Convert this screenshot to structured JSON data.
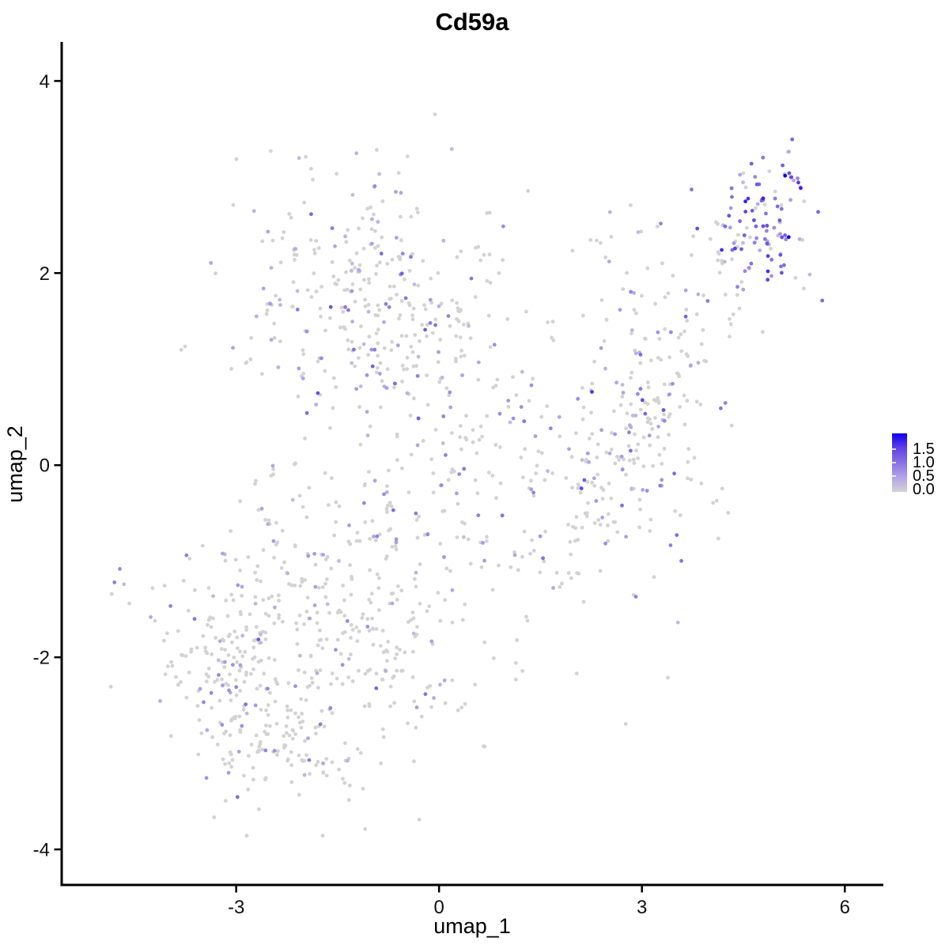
{
  "chart_data": {
    "type": "scatter",
    "title": "Cd59a",
    "xlabel": "umap_1",
    "ylabel": "umap_2",
    "x_ticks": [
      -3,
      0,
      3,
      6
    ],
    "x_tick_labels": [
      "-3",
      "0",
      "3",
      "6"
    ],
    "y_ticks": [
      -4,
      -2,
      0,
      2,
      4
    ],
    "y_tick_labels": [
      "-4",
      "-2",
      "0",
      "2",
      "4"
    ],
    "xlim": [
      -5.58,
      6.57
    ],
    "ylim": [
      -4.37,
      4.39
    ],
    "grid": false,
    "legend": {
      "position": "right",
      "labels": [
        "1.5",
        "1.0",
        "0.5",
        "0.0"
      ],
      "label_values": [
        1.5,
        1.0,
        0.5,
        0.0
      ],
      "low_color": "#D3D3D3",
      "high_color": "#0D00EE",
      "ramp": [
        "#D3D3D3",
        "#B1A4E9",
        "#8871E2",
        "#6041E8",
        "#0D00EE"
      ],
      "scale_max": 1.9
    },
    "point_style": {
      "radius": 2.4,
      "zero_expression_color": "#D3D3D3"
    },
    "generation": {
      "seed": 7,
      "twin_frac": 0.12,
      "clusters": [
        {
          "name": "lower-left-core",
          "cx": -2.9,
          "cy": -2.1,
          "sdx": 0.62,
          "sdy": 0.6,
          "count": 190,
          "zero": 0.8,
          "emean": 0.55,
          "esd": 0.25
        },
        {
          "name": "lower-mid-lobe",
          "cx": -1.2,
          "cy": -1.6,
          "sdx": 1.05,
          "sdy": 0.75,
          "count": 270,
          "zero": 0.83,
          "emean": 0.5,
          "esd": 0.25
        },
        {
          "name": "bottom-tail",
          "cx": -2.1,
          "cy": -2.95,
          "sdx": 0.5,
          "sdy": 0.3,
          "count": 60,
          "zero": 0.85,
          "emean": 0.5,
          "esd": 0.2
        },
        {
          "name": "upper-left-lobe",
          "cx": -1.0,
          "cy": 1.7,
          "sdx": 0.95,
          "sdy": 0.68,
          "count": 280,
          "zero": 0.68,
          "emean": 0.6,
          "esd": 0.28
        },
        {
          "name": "center-bridge",
          "cx": 0.1,
          "cy": 0.15,
          "sdx": 1.25,
          "sdy": 0.95,
          "count": 150,
          "zero": 0.78,
          "emean": 0.55,
          "esd": 0.25
        },
        {
          "name": "right-lobe",
          "cx": 2.7,
          "cy": 0.5,
          "sdx": 0.95,
          "sdy": 1.05,
          "count": 155,
          "zero": 0.76,
          "emean": 0.6,
          "esd": 0.3
        },
        {
          "name": "upper-right-arm",
          "line": [
            [
              1.9,
              -1.05
            ],
            [
              4.35,
              2.3
            ]
          ],
          "sdx": 0.32,
          "sdy": 0.32,
          "count": 120,
          "zero": 0.7,
          "emean": 0.65,
          "esd": 0.3
        },
        {
          "name": "top-right-high-expression",
          "cx": 4.8,
          "cy": 2.45,
          "sdx": 0.42,
          "sdy": 0.4,
          "count": 105,
          "zero": 0.22,
          "emean": 1.0,
          "esd": 0.45
        }
      ],
      "fixed_points": [
        [
          -4.72,
          -1.08,
          0.75
        ],
        [
          -4.8,
          -1.22,
          0.85
        ],
        [
          -4.66,
          -1.24,
          0.25
        ],
        [
          -4.84,
          -1.34,
          0.0
        ],
        [
          -4.58,
          -1.44,
          0.0
        ],
        [
          -4.2,
          -1.62,
          0.0
        ],
        [
          -4.02,
          -1.75,
          0.0
        ]
      ]
    }
  }
}
